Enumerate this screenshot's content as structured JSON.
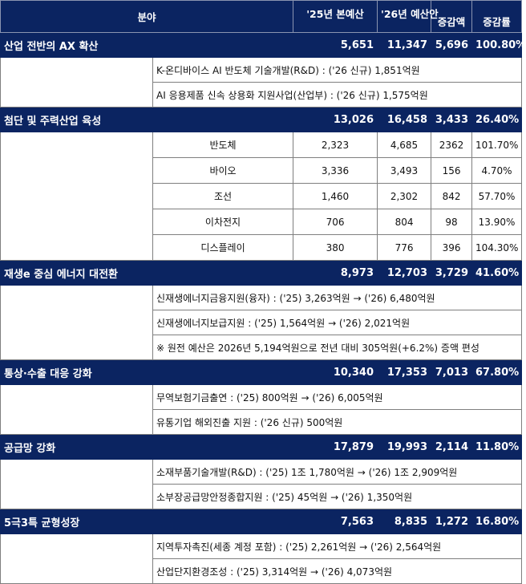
{
  "header": {
    "field": "분야",
    "budget25": "'25년 본예산",
    "budget26": "'26년 예산안",
    "change": "증감액",
    "rate": "증감률"
  },
  "categories": [
    {
      "name": "산업 전반의 AX 확산",
      "b25": "5,651",
      "b26": "11,347",
      "change": "5,696",
      "rate": "100.80%",
      "details": [
        "K-온디바이스 AI 반도체 기술개발(R&D) : ('26 신규) 1,851억원",
        "AI 응용제품 신속 상용화 지원사업(산업부) : ('26 신규) 1,575억원"
      ]
    },
    {
      "name": "첨단 및 주력산업 육성",
      "b25": "13,026",
      "b26": "16,458",
      "change": "3,433",
      "rate": "26.40%",
      "subs": [
        {
          "name": "반도체",
          "b25": "2,323",
          "b26": "4,685",
          "change": "2362",
          "rate": "101.70%"
        },
        {
          "name": "바이오",
          "b25": "3,336",
          "b26": "3,493",
          "change": "156",
          "rate": "4.70%"
        },
        {
          "name": "조선",
          "b25": "1,460",
          "b26": "2,302",
          "change": "842",
          "rate": "57.70%"
        },
        {
          "name": "이차전지",
          "b25": "706",
          "b26": "804",
          "change": "98",
          "rate": "13.90%"
        },
        {
          "name": "디스플레이",
          "b25": "380",
          "b26": "776",
          "change": "396",
          "rate": "104.30%"
        }
      ]
    },
    {
      "name": "재생e 중심 에너지 대전환",
      "b25": "8,973",
      "b26": "12,703",
      "change": "3,729",
      "rate": "41.60%",
      "details": [
        "신재생에너지금융지원(융자) : ('25) 3,263억원 → ('26) 6,480억원",
        "신재생에너지보급지원 : ('25) 1,564억원 → ('26) 2,021억원",
        "※ 원전 예산은 2026년 5,194억원으로 전년 대비 305억원(+6.2%) 증액 편성"
      ]
    },
    {
      "name": "통상·수출 대응 강화",
      "b25": "10,340",
      "b26": "17,353",
      "change": "7,013",
      "rate": "67.80%",
      "details": [
        "무역보험기금출연 : ('25) 800억원 → ('26) 6,005억원",
        "유통기업 해외진출 지원 : ('26 신규) 500억원"
      ]
    },
    {
      "name": "공급망 강화",
      "b25": "17,879",
      "b26": "19,993",
      "change": "2,114",
      "rate": "11.80%",
      "details": [
        "소재부품기술개발(R&D) : ('25) 1조 1,780억원 → ('26) 1조 2,909억원",
        "소부장공급망안정종합지원 : ('25) 45억원 → ('26) 1,350억원"
      ]
    },
    {
      "name": "5극3특 균형성장",
      "b25": "7,563",
      "b26": "8,835",
      "change": "1,272",
      "rate": "16.80%",
      "details": [
        "지역투자촉진(세종 계정 포함) : ('25) 2,261억원 → ('26) 2,564억원",
        "산업단지환경조성 : ('25) 3,314억원 → ('26) 4,073억원"
      ]
    }
  ]
}
